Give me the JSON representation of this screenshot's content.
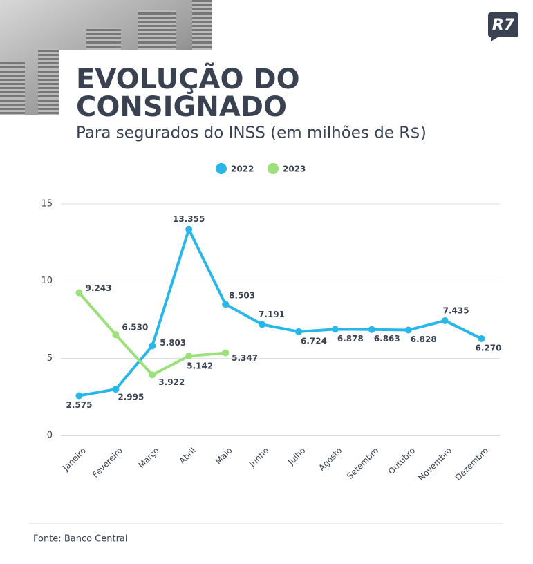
{
  "logo": "R7",
  "chart_data": {
    "type": "line",
    "title": [
      "EVOLUÇÃO DO",
      "CONSIGNADO"
    ],
    "subtitle": "Para segurados do INSS (em milhões de R$)",
    "source": "Fonte: Banco Central",
    "categories": [
      "Janeiro",
      "Fevereiro",
      "Março",
      "Abril",
      "Maio",
      "Junho",
      "Julho",
      "Agosto",
      "Setembro",
      "Outubro",
      "Novembro",
      "Dezembro"
    ],
    "series": [
      {
        "name": "2022",
        "color": "#29b6e8",
        "values": [
          2.575,
          2.995,
          5.803,
          13.355,
          8.503,
          7.191,
          6.724,
          6.878,
          6.863,
          6.828,
          7.435,
          6.27
        ],
        "value_labels": [
          "2.575",
          "2.995",
          "5.803",
          "13.355",
          "8.503",
          "7.191",
          "6.724",
          "6.878",
          "6.863",
          "6.828",
          "7.435",
          "6.270"
        ]
      },
      {
        "name": "2023",
        "color": "#9be07a",
        "values": [
          9.243,
          6.53,
          3.922,
          5.142,
          5.347,
          null,
          null,
          null,
          null,
          null,
          null,
          null
        ],
        "value_labels": [
          "9.243",
          "6.530",
          "3.922",
          "5.142",
          "5.347",
          null,
          null,
          null,
          null,
          null,
          null,
          null
        ]
      }
    ],
    "ylim": [
      0,
      15
    ],
    "yticks": [
      0,
      5,
      10,
      15
    ],
    "grid": true,
    "legend": "top"
  }
}
